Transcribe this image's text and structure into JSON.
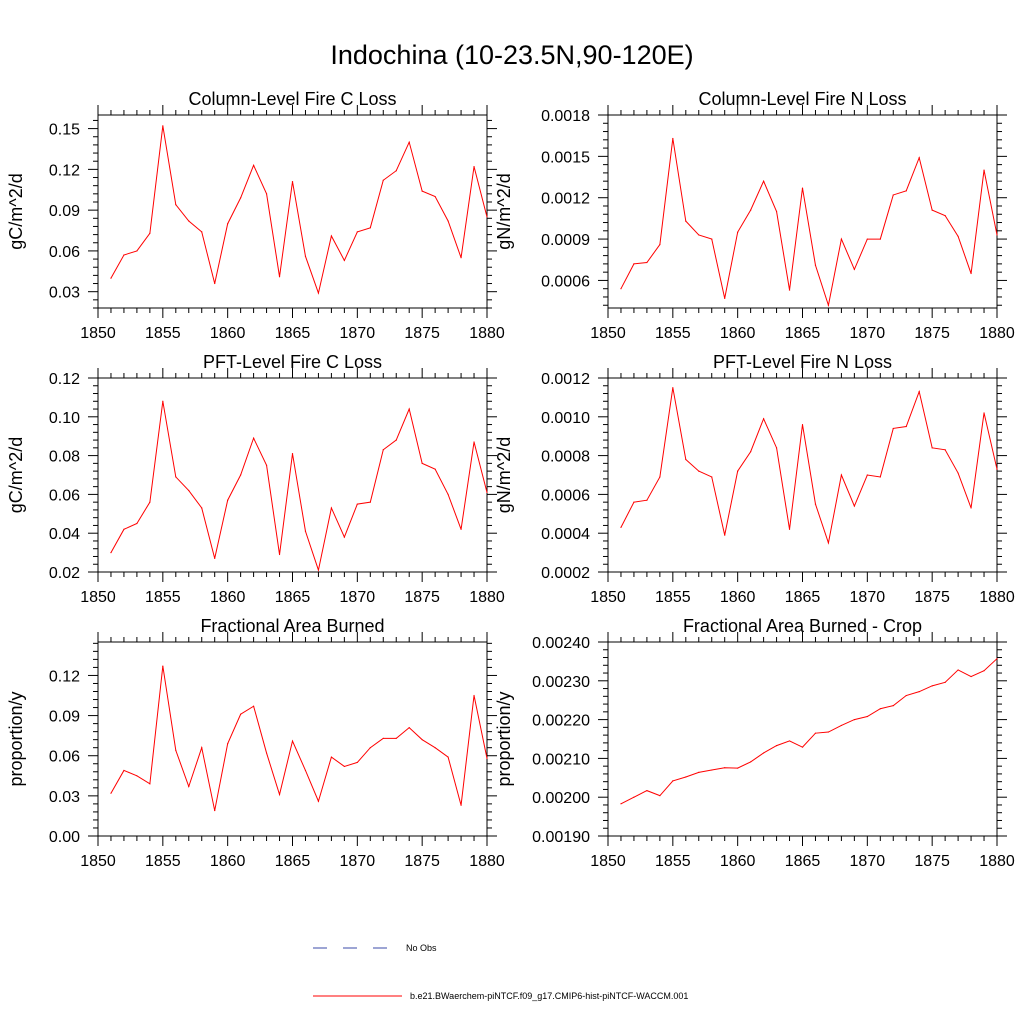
{
  "page": {
    "title": "Indochina (10-23.5N,90-120E)"
  },
  "legend": {
    "entries": [
      {
        "label": "No Obs",
        "color": "#3b4ba8",
        "dash": "dashed"
      },
      {
        "label": "b.e21.BWaerchem-piNTCF.f09_g17.CMIP6-hist-piNTCF-WACCM.001",
        "color": "#ff0000",
        "dash": "solid"
      }
    ]
  },
  "chart_data": [
    {
      "id": "col-fire-c",
      "type": "line",
      "title": "Column-Level Fire C Loss",
      "ylabel": "gC/m^2/d",
      "xlabel": "",
      "xlim": [
        1850,
        1880
      ],
      "ylim": [
        0.018,
        0.16
      ],
      "xticks": [
        1850,
        1855,
        1860,
        1865,
        1870,
        1875,
        1880
      ],
      "yticks": [
        0.03,
        0.06,
        0.09,
        0.12,
        0.15
      ],
      "ytick_labels": [
        "0.03",
        "0.06",
        "0.09",
        "0.12",
        "0.15"
      ],
      "x": [
        1851,
        1852,
        1853,
        1854,
        1855,
        1856,
        1857,
        1858,
        1859,
        1860,
        1861,
        1862,
        1863,
        1864,
        1865,
        1866,
        1867,
        1868,
        1869,
        1870,
        1871,
        1872,
        1873,
        1874,
        1875,
        1876,
        1877,
        1878,
        1879,
        1880
      ],
      "series": [
        {
          "name": "b.e21.BWaerchem-piNTCF.f09_g17.CMIP6-hist-piNTCF-WACCM.001",
          "color": "#ff0000",
          "values": [
            0.04,
            0.057,
            0.06,
            0.073,
            0.152,
            0.094,
            0.082,
            0.074,
            0.036,
            0.08,
            0.099,
            0.123,
            0.102,
            0.041,
            0.111,
            0.056,
            0.029,
            0.071,
            0.053,
            0.074,
            0.077,
            0.112,
            0.119,
            0.14,
            0.104,
            0.1,
            0.082,
            0.055,
            0.122,
            0.085
          ]
        }
      ]
    },
    {
      "id": "col-fire-n",
      "type": "line",
      "title": "Column-Level Fire N Loss",
      "ylabel": "gN/m^2/d",
      "xlabel": "",
      "xlim": [
        1850,
        1880
      ],
      "ylim": [
        0.0004,
        0.0018
      ],
      "xticks": [
        1850,
        1855,
        1860,
        1865,
        1870,
        1875,
        1880
      ],
      "yticks": [
        0.0006,
        0.0009,
        0.0012,
        0.0015,
        0.0018
      ],
      "ytick_labels": [
        "0.0006",
        "0.0009",
        "0.0012",
        "0.0015",
        "0.0018"
      ],
      "x": [
        1851,
        1852,
        1853,
        1854,
        1855,
        1856,
        1857,
        1858,
        1859,
        1860,
        1861,
        1862,
        1863,
        1864,
        1865,
        1866,
        1867,
        1868,
        1869,
        1870,
        1871,
        1872,
        1873,
        1874,
        1875,
        1876,
        1877,
        1878,
        1879,
        1880
      ],
      "series": [
        {
          "name": "b.e21.BWaerchem-piNTCF.f09_g17.CMIP6-hist-piNTCF-WACCM.001",
          "color": "#ff0000",
          "values": [
            0.00054,
            0.00072,
            0.00073,
            0.00086,
            0.00163,
            0.00103,
            0.00093,
            0.0009,
            0.00047,
            0.00095,
            0.00111,
            0.00132,
            0.0011,
            0.00053,
            0.00127,
            0.00071,
            0.00042,
            0.0009,
            0.00068,
            0.0009,
            0.0009,
            0.00122,
            0.00125,
            0.00149,
            0.00111,
            0.00107,
            0.00092,
            0.00065,
            0.0014,
            0.00093
          ]
        }
      ]
    },
    {
      "id": "pft-fire-c",
      "type": "line",
      "title": "PFT-Level Fire C Loss",
      "ylabel": "gC/m^2/d",
      "xlabel": "",
      "xlim": [
        1850,
        1880
      ],
      "ylim": [
        0.02,
        0.12
      ],
      "xticks": [
        1850,
        1855,
        1860,
        1865,
        1870,
        1875,
        1880
      ],
      "yticks": [
        0.02,
        0.04,
        0.06,
        0.08,
        0.1,
        0.12
      ],
      "ytick_labels": [
        "0.02",
        "0.04",
        "0.06",
        "0.08",
        "0.10",
        "0.12"
      ],
      "x": [
        1851,
        1852,
        1853,
        1854,
        1855,
        1856,
        1857,
        1858,
        1859,
        1860,
        1861,
        1862,
        1863,
        1864,
        1865,
        1866,
        1867,
        1868,
        1869,
        1870,
        1871,
        1872,
        1873,
        1874,
        1875,
        1876,
        1877,
        1878,
        1879,
        1880
      ],
      "series": [
        {
          "name": "b.e21.BWaerchem-piNTCF.f09_g17.CMIP6-hist-piNTCF-WACCM.001",
          "color": "#ff0000",
          "values": [
            0.03,
            0.042,
            0.045,
            0.056,
            0.108,
            0.069,
            0.062,
            0.053,
            0.027,
            0.057,
            0.07,
            0.089,
            0.075,
            0.029,
            0.081,
            0.041,
            0.021,
            0.053,
            0.038,
            0.055,
            0.056,
            0.083,
            0.088,
            0.104,
            0.076,
            0.073,
            0.06,
            0.042,
            0.087,
            0.061
          ]
        }
      ]
    },
    {
      "id": "pft-fire-n",
      "type": "line",
      "title": "PFT-Level Fire N Loss",
      "ylabel": "gN/m^2/d",
      "xlabel": "",
      "xlim": [
        1850,
        1880
      ],
      "ylim": [
        0.0002,
        0.0012
      ],
      "xticks": [
        1850,
        1855,
        1860,
        1865,
        1870,
        1875,
        1880
      ],
      "yticks": [
        0.0002,
        0.0004,
        0.0006,
        0.0008,
        0.001,
        0.0012
      ],
      "ytick_labels": [
        "0.0002",
        "0.0004",
        "0.0006",
        "0.0008",
        "0.0010",
        "0.0012"
      ],
      "x": [
        1851,
        1852,
        1853,
        1854,
        1855,
        1856,
        1857,
        1858,
        1859,
        1860,
        1861,
        1862,
        1863,
        1864,
        1865,
        1866,
        1867,
        1868,
        1869,
        1870,
        1871,
        1872,
        1873,
        1874,
        1875,
        1876,
        1877,
        1878,
        1879,
        1880
      ],
      "series": [
        {
          "name": "b.e21.BWaerchem-piNTCF.f09_g17.CMIP6-hist-piNTCF-WACCM.001",
          "color": "#ff0000",
          "values": [
            0.00043,
            0.00056,
            0.00057,
            0.00069,
            0.00115,
            0.00078,
            0.00072,
            0.00069,
            0.00039,
            0.00072,
            0.00082,
            0.00099,
            0.00084,
            0.00042,
            0.00096,
            0.00055,
            0.00035,
            0.0007,
            0.00054,
            0.0007,
            0.00069,
            0.00094,
            0.00095,
            0.00113,
            0.00084,
            0.00083,
            0.00071,
            0.00053,
            0.00102,
            0.00073
          ]
        }
      ]
    },
    {
      "id": "frac-area",
      "type": "line",
      "title": "Fractional Area Burned",
      "ylabel": "proportion/y",
      "xlabel": "",
      "xlim": [
        1850,
        1880
      ],
      "ylim": [
        0.0,
        0.145
      ],
      "xticks": [
        1850,
        1855,
        1860,
        1865,
        1870,
        1875,
        1880
      ],
      "yticks": [
        0.0,
        0.03,
        0.06,
        0.09,
        0.12
      ],
      "ytick_labels": [
        "0.00",
        "0.03",
        "0.06",
        "0.09",
        "0.12"
      ],
      "x": [
        1851,
        1852,
        1853,
        1854,
        1855,
        1856,
        1857,
        1858,
        1859,
        1860,
        1861,
        1862,
        1863,
        1864,
        1865,
        1866,
        1867,
        1868,
        1869,
        1870,
        1871,
        1872,
        1873,
        1874,
        1875,
        1876,
        1877,
        1878,
        1879,
        1880
      ],
      "series": [
        {
          "name": "b.e21.BWaerchem-piNTCF.f09_g17.CMIP6-hist-piNTCF-WACCM.001",
          "color": "#ff0000",
          "values": [
            0.032,
            0.049,
            0.045,
            0.039,
            0.127,
            0.064,
            0.037,
            0.066,
            0.019,
            0.069,
            0.091,
            0.097,
            0.062,
            0.031,
            0.071,
            0.049,
            0.026,
            0.059,
            0.052,
            0.055,
            0.066,
            0.073,
            0.073,
            0.081,
            0.072,
            0.066,
            0.059,
            0.023,
            0.105,
            0.058
          ]
        }
      ]
    },
    {
      "id": "frac-area-crop",
      "type": "line",
      "title": "Fractional Area Burned - Crop",
      "ylabel": "proportion/y",
      "xlabel": "",
      "xlim": [
        1850,
        1880
      ],
      "ylim": [
        0.0019,
        0.0024
      ],
      "xticks": [
        1850,
        1855,
        1860,
        1865,
        1870,
        1875,
        1880
      ],
      "yticks": [
        0.0019,
        0.002,
        0.0021,
        0.0022,
        0.0023,
        0.0024
      ],
      "ytick_labels": [
        "0.00190",
        "0.00200",
        "0.00210",
        "0.00220",
        "0.00230",
        "0.00240"
      ],
      "x": [
        1851,
        1852,
        1853,
        1854,
        1855,
        1856,
        1857,
        1858,
        1859,
        1860,
        1861,
        1862,
        1863,
        1864,
        1865,
        1866,
        1867,
        1868,
        1869,
        1870,
        1871,
        1872,
        1873,
        1874,
        1875,
        1876,
        1877,
        1878,
        1879,
        1880
      ],
      "series": [
        {
          "name": "b.e21.BWaerchem-piNTCF.f09_g17.CMIP6-hist-piNTCF-WACCM.001",
          "color": "#ff0000",
          "values": [
            0.001983,
            0.002,
            0.002017,
            0.002004,
            0.002042,
            0.002052,
            0.002064,
            0.00207,
            0.002076,
            0.002075,
            0.002091,
            0.002114,
            0.002133,
            0.002145,
            0.002129,
            0.002165,
            0.002168,
            0.002185,
            0.0022,
            0.002208,
            0.002228,
            0.002236,
            0.002262,
            0.002272,
            0.002287,
            0.002296,
            0.002328,
            0.002311,
            0.002326,
            0.002357
          ]
        }
      ]
    }
  ]
}
